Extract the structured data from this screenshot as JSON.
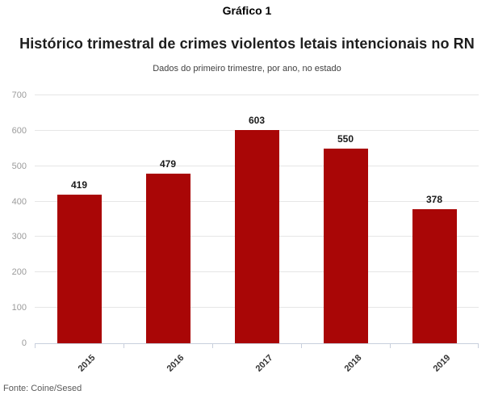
{
  "header": {
    "kicker": "Gráfico 1",
    "title": "Histórico trimestral de crimes violentos letais intencionais no RN",
    "subtitle": "Dados do primeiro trimestre, por ano, no estado"
  },
  "chart_data": {
    "type": "bar",
    "categories": [
      "2015",
      "2016",
      "2017",
      "2018",
      "2019"
    ],
    "values": [
      419,
      479,
      603,
      550,
      378
    ],
    "title": "Histórico trimestral de crimes violentos letais intencionais no RN",
    "subtitle": "Dados do primeiro trimestre, por ano, no estado",
    "xlabel": "",
    "ylabel": "",
    "ylim": [
      0,
      700
    ],
    "yticks": [
      0,
      100,
      200,
      300,
      400,
      500,
      600,
      700
    ],
    "grid": true,
    "legend": "none",
    "value_labels": true
  },
  "footer": {
    "source": "Fonte: Coine/Sesed"
  },
  "colors": {
    "bar": "#a90606",
    "gridline": "#e6e6e6",
    "axis": "#c8cfdc",
    "ytick_label": "#9b9b9b",
    "xtick_label": "#333333",
    "value_label": "#1a1a1a",
    "footer_text": "#595959"
  }
}
